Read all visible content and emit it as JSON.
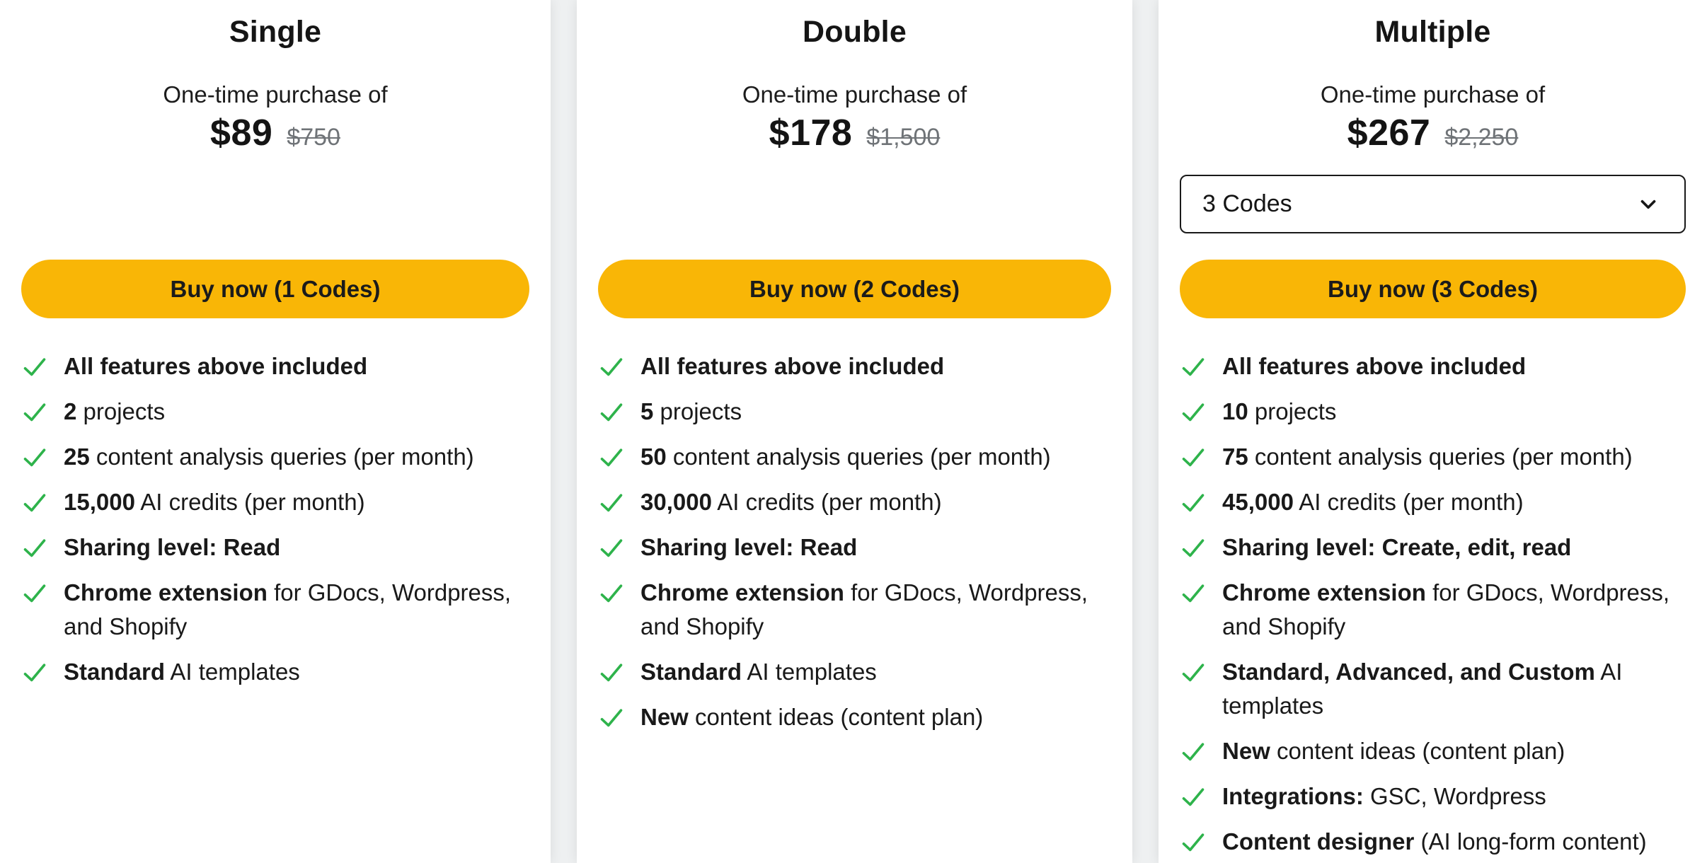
{
  "colors": {
    "button_yellow": "#F9B606",
    "check_green": "#2EB34B",
    "old_price_gray": "#6F7377"
  },
  "cards": [
    {
      "id": "single",
      "title": "Single",
      "subtitle": "One-time purchase of",
      "price": "$89",
      "old_price": "$750",
      "button_label": "Buy now (1 Codes)",
      "features": [
        [
          {
            "t": "All features above included",
            "b": true
          }
        ],
        [
          {
            "t": "2",
            "b": true
          },
          {
            "t": " projects",
            "b": false
          }
        ],
        [
          {
            "t": "25",
            "b": true
          },
          {
            "t": " content analysis queries (per month)",
            "b": false
          }
        ],
        [
          {
            "t": "15,000",
            "b": true
          },
          {
            "t": " AI credits (per month)",
            "b": false
          }
        ],
        [
          {
            "t": "Sharing level: Read",
            "b": true
          }
        ],
        [
          {
            "t": "Chrome extension",
            "b": true
          },
          {
            "t": " for GDocs, Wordpress, and Shopify",
            "b": false
          }
        ],
        [
          {
            "t": "Standard",
            "b": true
          },
          {
            "t": " AI templates",
            "b": false
          }
        ]
      ]
    },
    {
      "id": "double",
      "title": "Double",
      "subtitle": "One-time purchase of",
      "price": "$178",
      "old_price": "$1,500",
      "button_label": "Buy now (2 Codes)",
      "features": [
        [
          {
            "t": "All features above included",
            "b": true
          }
        ],
        [
          {
            "t": "5",
            "b": true
          },
          {
            "t": " projects",
            "b": false
          }
        ],
        [
          {
            "t": "50",
            "b": true
          },
          {
            "t": " content analysis queries (per month)",
            "b": false
          }
        ],
        [
          {
            "t": "30,000",
            "b": true
          },
          {
            "t": " AI credits (per month)",
            "b": false
          }
        ],
        [
          {
            "t": "Sharing level: Read",
            "b": true
          }
        ],
        [
          {
            "t": "Chrome extension",
            "b": true
          },
          {
            "t": " for GDocs, Wordpress, and Shopify",
            "b": false
          }
        ],
        [
          {
            "t": "Standard",
            "b": true
          },
          {
            "t": " AI templates",
            "b": false
          }
        ],
        [
          {
            "t": "New",
            "b": true
          },
          {
            "t": " content ideas (content plan)",
            "b": false
          }
        ]
      ]
    },
    {
      "id": "multiple",
      "title": "Multiple",
      "subtitle": "One-time purchase of",
      "price": "$267",
      "old_price": "$2,250",
      "dropdown": {
        "value": "3 Codes"
      },
      "button_label": "Buy now (3 Codes)",
      "features": [
        [
          {
            "t": "All features above included",
            "b": true
          }
        ],
        [
          {
            "t": "10",
            "b": true
          },
          {
            "t": " projects",
            "b": false
          }
        ],
        [
          {
            "t": "75",
            "b": true
          },
          {
            "t": " content analysis queries (per month)",
            "b": false
          }
        ],
        [
          {
            "t": "45,000",
            "b": true
          },
          {
            "t": " AI credits (per month)",
            "b": false
          }
        ],
        [
          {
            "t": "Sharing level: Create, edit, read",
            "b": true
          }
        ],
        [
          {
            "t": "Chrome extension",
            "b": true
          },
          {
            "t": " for GDocs, Wordpress, and Shopify",
            "b": false
          }
        ],
        [
          {
            "t": "Standard, Advanced, and Custom",
            "b": true
          },
          {
            "t": " AI templates",
            "b": false
          }
        ],
        [
          {
            "t": "New",
            "b": true
          },
          {
            "t": " content ideas (content plan)",
            "b": false
          }
        ],
        [
          {
            "t": "Integrations:",
            "b": true
          },
          {
            "t": " GSC, Wordpress",
            "b": false
          }
        ],
        [
          {
            "t": "Content designer",
            "b": true
          },
          {
            "t": " (AI long-form content)",
            "b": false
          }
        ]
      ]
    }
  ]
}
